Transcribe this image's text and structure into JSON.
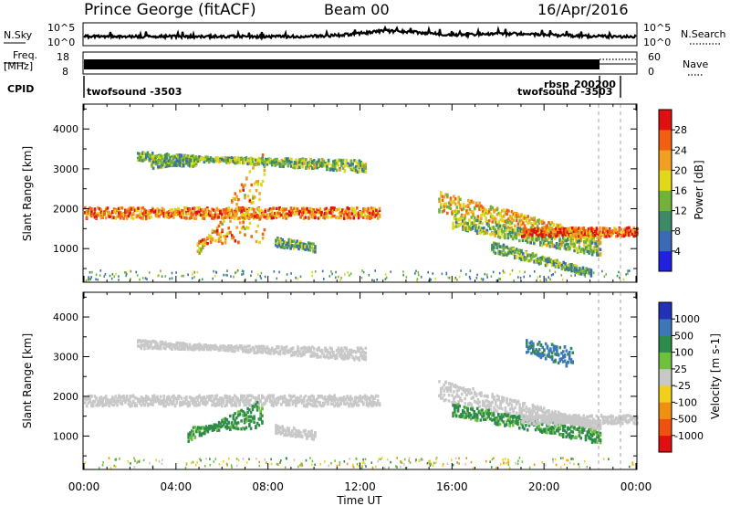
{
  "header": {
    "radar": "Prince George (fitACF)",
    "beam": "Beam 00",
    "date": "16/Apr/2016"
  },
  "nsky_panel": {
    "left_label": "N.Sky",
    "right_label": "N.Search",
    "left_ticks": [
      "10^5",
      "10^0"
    ],
    "right_ticks": [
      "10^5",
      "10^0"
    ]
  },
  "freq_panel": {
    "left_label_1": "Freq.",
    "left_label_2": "[MHz]",
    "right_label": "Nave",
    "left_ticks": [
      "18",
      "8"
    ],
    "right_ticks": [
      "60",
      "0"
    ]
  },
  "cpid_panel": {
    "label": "CPID",
    "entries": [
      "twofsound -3503",
      "rbsp",
      "200200",
      "twofsound -3503"
    ]
  },
  "chart_data": [
    {
      "type": "heatmap",
      "quantity": "Power",
      "ylabel": "Slant Range [km]",
      "ylim": [
        180,
        4600
      ],
      "yticks": [
        "1000",
        "2000",
        "3000",
        "4000"
      ],
      "xlim": [
        0,
        24
      ],
      "colorbar_label": "Power [dB]",
      "colorbar_ticks": [
        "4",
        "8",
        "12",
        "16",
        "20",
        "24",
        "28"
      ],
      "colorbar_colors": [
        "#2020e0",
        "#3a6ab4",
        "#3c8a68",
        "#72b23a",
        "#e0d818",
        "#f0a020",
        "#f06010",
        "#e01010"
      ],
      "bands": [
        {
          "t": [
            2.3,
            12.2
          ],
          "r0": [
            3300,
            3400
          ],
          "r1": [
            3200,
            3000
          ],
          "v": 14
        },
        {
          "t": [
            0.0,
            12.8
          ],
          "r0": [
            1850,
            2000
          ],
          "r1": [
            1850,
            2000
          ],
          "v": 24
        },
        {
          "t": [
            2.9,
            4.9
          ],
          "r0": [
            3100,
            3200
          ],
          "r1": [
            3250,
            3150
          ],
          "v": 12
        },
        {
          "t": [
            8.3,
            10.0
          ],
          "r0": [
            1250,
            1150
          ],
          "r1": [
            1100,
            1000
          ],
          "v": 12
        },
        {
          "t": [
            15.4,
            22.4
          ],
          "r0": [
            2400,
            2000
          ],
          "r1": [
            1300,
            1200
          ],
          "v": 20
        },
        {
          "t": [
            16.0,
            22.4
          ],
          "r0": [
            1800,
            1600
          ],
          "r1": [
            1100,
            900
          ],
          "v": 14
        },
        {
          "t": [
            19.0,
            24.0
          ],
          "r0": [
            1400,
            1500
          ],
          "r1": [
            1400,
            1500
          ],
          "v": 26
        },
        {
          "t": [
            17.7,
            22.0
          ],
          "r0": [
            1150,
            1000
          ],
          "r1": [
            450,
            400
          ],
          "v": 12
        },
        {
          "t": [
            4.9,
            7.8
          ],
          "r0": [
            1200,
            900
          ],
          "r1": [
            1250,
            3500
          ],
          "v": 22
        }
      ]
    },
    {
      "type": "heatmap",
      "quantity": "Velocity",
      "ylabel": "Slant Range [km]",
      "xlabel": "Time UT",
      "ylim": [
        180,
        4600
      ],
      "yticks": [
        "1000",
        "2000",
        "3000",
        "4000"
      ],
      "xlim": [
        0,
        24
      ],
      "xticks": [
        "00:00",
        "04:00",
        "08:00",
        "12:00",
        "16:00",
        "20:00",
        "00:00"
      ],
      "colorbar_label": "Velocity [m s-1]",
      "colorbar_ticks": [
        "1000",
        "500",
        "100",
        "25",
        "-25",
        "-100",
        "-500",
        "-1000"
      ],
      "colorbar_colors": [
        "#2232b8",
        "#3c78b8",
        "#2e8c4a",
        "#70c040",
        "#c8c8c8",
        "#f0d018",
        "#f09010",
        "#f05010",
        "#e01010"
      ],
      "bands": [
        {
          "t": [
            2.3,
            12.2
          ],
          "r0": [
            3300,
            3400
          ],
          "r1": [
            3200,
            3000
          ],
          "v": 0
        },
        {
          "t": [
            0.0,
            12.8
          ],
          "r0": [
            1850,
            2000
          ],
          "r1": [
            1850,
            2000
          ],
          "v": 0
        },
        {
          "t": [
            8.3,
            10.0
          ],
          "r0": [
            1250,
            1150
          ],
          "r1": [
            1100,
            1000
          ],
          "v": 0
        },
        {
          "t": [
            15.4,
            22.4
          ],
          "r0": [
            2400,
            2000
          ],
          "r1": [
            1300,
            1200
          ],
          "v": 0
        },
        {
          "t": [
            16.0,
            22.4
          ],
          "r0": [
            1800,
            1600
          ],
          "r1": [
            1100,
            900
          ],
          "v": 150
        },
        {
          "t": [
            19.0,
            24.0
          ],
          "r0": [
            1400,
            1500
          ],
          "r1": [
            1400,
            1500
          ],
          "v": 0
        },
        {
          "t": [
            4.5,
            7.7
          ],
          "r0": [
            1200,
            950
          ],
          "r1": [
            1300,
            1900
          ],
          "v": 150
        },
        {
          "t": [
            19.2,
            21.2
          ],
          "r0": [
            3200,
            3400
          ],
          "r1": [
            2800,
            3200
          ],
          "v": 600
        }
      ]
    }
  ]
}
